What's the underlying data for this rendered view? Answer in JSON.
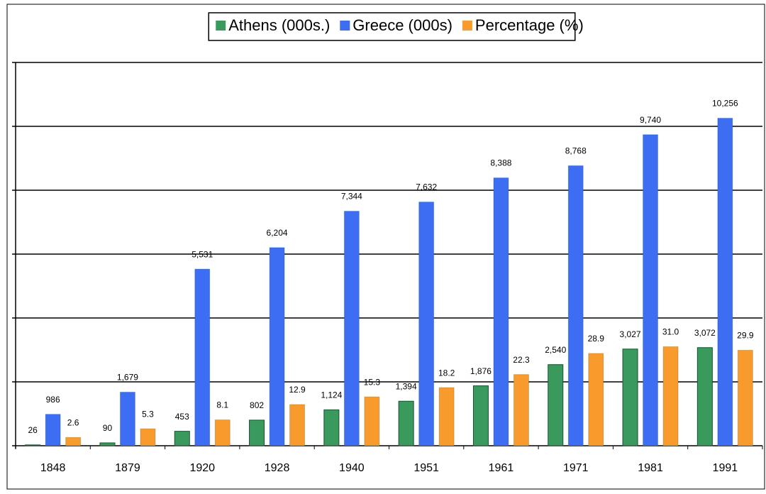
{
  "chart_data": {
    "type": "bar",
    "categories": [
      "1848",
      "1879",
      "1920",
      "1928",
      "1940",
      "1951",
      "1961",
      "1971",
      "1981",
      "1991"
    ],
    "series": [
      {
        "name": "Athens (000s.)",
        "color": "#3a9a5e",
        "values": [
          26,
          90,
          453,
          802,
          1124,
          1394,
          1876,
          2540,
          3027,
          3072
        ],
        "value_labels": [
          "26",
          "90",
          "453",
          "802",
          "1,124",
          "1,394",
          "1,876",
          "2,540",
          "3,027",
          "3,072"
        ]
      },
      {
        "name": "Greece (000s)",
        "color": "#3d6df2",
        "values": [
          986,
          1679,
          5531,
          6204,
          7344,
          7632,
          8388,
          8768,
          9740,
          10256
        ],
        "value_labels": [
          "986",
          "1,679",
          "5,531",
          "6,204",
          "7,344",
          "7,632",
          "8,388",
          "8,768",
          "9,740",
          "10,256"
        ]
      },
      {
        "name": "Percentage (%)",
        "color": "#f99b2c",
        "axis": "y2",
        "values": [
          2.6,
          5.3,
          8.1,
          12.9,
          15.3,
          18.2,
          22.3,
          28.9,
          31.0,
          29.9
        ],
        "value_labels": [
          "2.6",
          "5.3",
          "8.1",
          "12.9",
          "15.3",
          "18.2",
          "22.3",
          "28.9",
          "31.0",
          "29.9"
        ]
      }
    ],
    "ylim": [
      0,
      12000
    ],
    "yticks": [
      0,
      2000,
      4000,
      6000,
      8000,
      10000,
      12000
    ],
    "y2lim": [
      0,
      120
    ],
    "grid": true,
    "show_tick_labels": false,
    "legend": "top"
  }
}
